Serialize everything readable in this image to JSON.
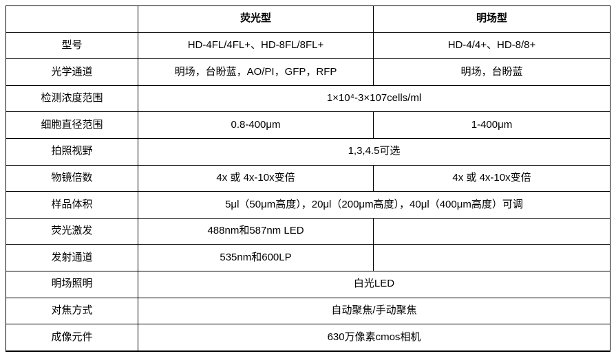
{
  "table": {
    "header": {
      "empty": "",
      "fluorescence": "荧光型",
      "brightfield": "明场型"
    },
    "rows": [
      {
        "label": "型号",
        "cells": [
          "HD-4FL/4FL+、HD-8FL/8FL+",
          "HD-4/4+、HD-8/8+"
        ]
      },
      {
        "label": "光学通道",
        "cells": [
          "明场，台盼蓝，AO/PI，GFP，RFP",
          "明场，台盼蓝"
        ]
      },
      {
        "label": "检测浓度范围",
        "cells": [
          "1×10⁴-3×107cells/ml"
        ]
      },
      {
        "label": "细胞直径范围",
        "cells": [
          "0.8-400μm",
          "1-400μm"
        ]
      },
      {
        "label": "拍照视野",
        "cells": [
          "1,3,4.5可选"
        ]
      },
      {
        "label": "物镜倍数",
        "cells": [
          "4x 或 4x-10x变倍",
          "4x 或 4x-10x变倍"
        ]
      },
      {
        "label": "样品体积",
        "cells": [
          "5μl（50μm高度），20μl（200μm高度），40μl（400μm高度）可调"
        ]
      },
      {
        "label": "荧光激发",
        "cells": [
          "488nm和587nm LED",
          ""
        ]
      },
      {
        "label": "发射通道",
        "cells": [
          "535nm和600LP",
          ""
        ]
      },
      {
        "label": "明场照明",
        "cells": [
          "白光LED"
        ]
      },
      {
        "label": "对焦方式",
        "cells": [
          "自动聚焦/手动聚焦"
        ]
      },
      {
        "label": "成像元件",
        "cells": [
          "630万像素cmos相机"
        ]
      }
    ]
  }
}
